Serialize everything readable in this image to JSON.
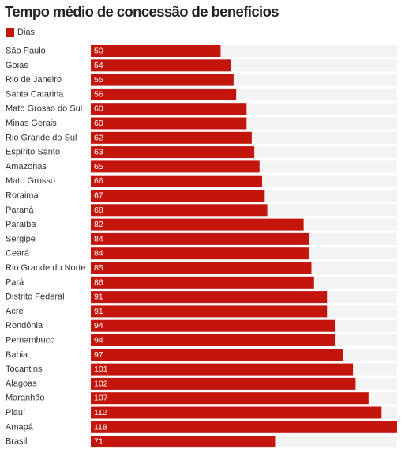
{
  "title": "Tempo médio de concessão de benefícios",
  "legend": {
    "label": "Dias",
    "color": "#c4150d"
  },
  "colors": {
    "bar": "#c4150d",
    "track": "#f3f3f3"
  },
  "chart_data": {
    "type": "bar",
    "orientation": "horizontal",
    "title": "Tempo médio de concessão de benefícios",
    "xlabel": "",
    "ylabel": "",
    "xlim": [
      0,
      118
    ],
    "grid": false,
    "legend_position": "top-left",
    "categories": [
      "São Paulo",
      "Goiás",
      "Rio de Janeiro",
      "Santa Catarina",
      "Mato Grosso do Sul",
      "Minas Gerais",
      "Rio Grande do Sul",
      "Espírito Santo",
      "Amazonas",
      "Mato Grosso",
      "Roraima",
      "Paraná",
      "Paraíba",
      "Sergipe",
      "Ceará",
      "Rio Grande do Norte",
      "Pará",
      "Distrito Federal",
      "Acre",
      "Rondônia",
      "Pernambuco",
      "Bahia",
      "Tocantins",
      "Alagoas",
      "Maranhão",
      "Piauí",
      "Amapá",
      "Brasil"
    ],
    "series": [
      {
        "name": "Dias",
        "values": [
          50,
          54,
          55,
          56,
          60,
          60,
          62,
          63,
          65,
          66,
          67,
          68,
          82,
          84,
          84,
          85,
          86,
          91,
          91,
          94,
          94,
          97,
          101,
          102,
          107,
          112,
          118,
          71
        ]
      }
    ]
  }
}
